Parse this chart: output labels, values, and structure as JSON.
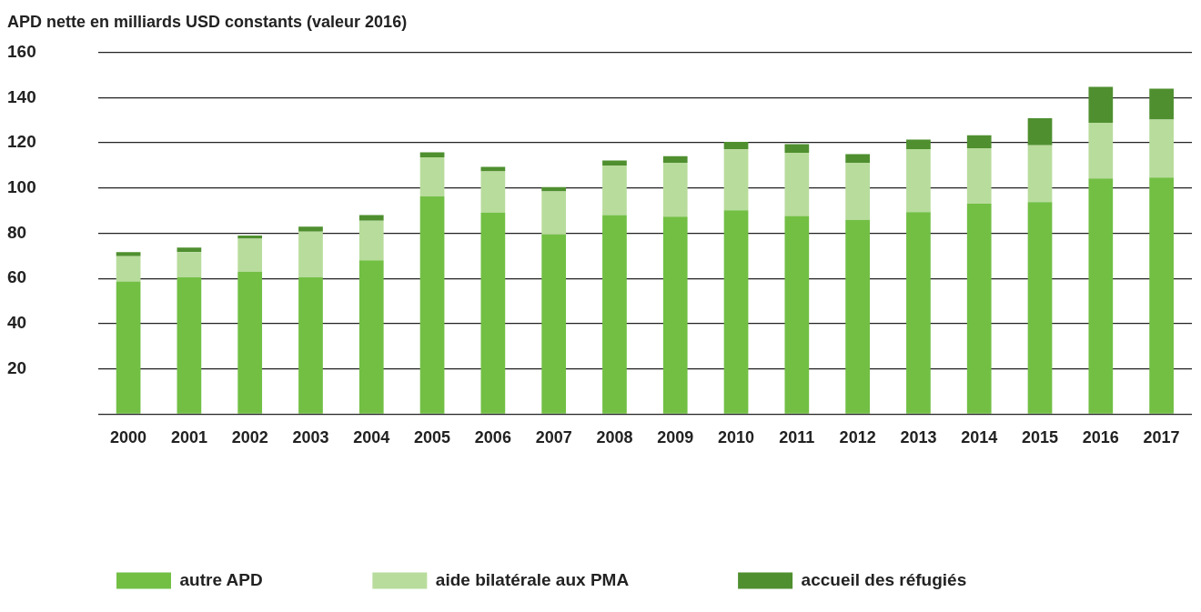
{
  "chart_data": {
    "type": "bar",
    "title": "APD nette en milliards USD constants (valeur 2016)",
    "stacked": true,
    "categories": [
      "2000",
      "2001",
      "2002",
      "2003",
      "2004",
      "2005",
      "2006",
      "2007",
      "2008",
      "2009",
      "2010",
      "2011",
      "2012",
      "2013",
      "2014",
      "2015",
      "2016",
      "2017"
    ],
    "series": [
      {
        "name": "autre APD",
        "color": "#72bf44",
        "values": [
          58.7,
          60.5,
          63.0,
          60.5,
          68.0,
          96.3,
          89.2,
          79.5,
          88.0,
          87.3,
          90.2,
          87.6,
          85.9,
          89.4,
          93.1,
          93.8,
          104.2,
          104.6
        ]
      },
      {
        "name": "aide bilatérale aux PMA",
        "color": "#b8dc9c",
        "values": [
          11.1,
          11.2,
          14.6,
          20.2,
          17.5,
          17.3,
          18.2,
          19.0,
          22.0,
          23.9,
          26.9,
          28.0,
          25.3,
          27.8,
          24.5,
          25.1,
          24.7,
          25.7
        ]
      },
      {
        "name": "accueil des réfugiés",
        "color": "#4f8f2f",
        "values": [
          1.9,
          2.0,
          1.4,
          2.2,
          2.5,
          2.2,
          2.0,
          1.9,
          2.2,
          2.9,
          3.3,
          3.8,
          3.8,
          4.2,
          5.7,
          12.0,
          15.9,
          13.7
        ]
      }
    ],
    "ylim": [
      0,
      160
    ],
    "yticks": [
      {
        "value": 0,
        "label": null
      },
      20,
      40,
      60,
      80,
      100,
      120,
      140,
      160
    ],
    "grid": "y",
    "legend": "bottom left"
  }
}
